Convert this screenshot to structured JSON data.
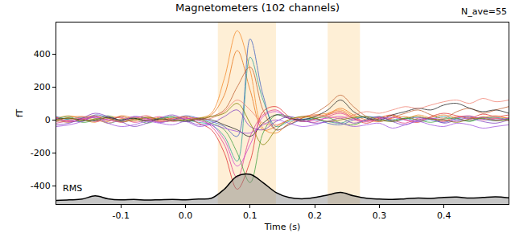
{
  "chart_data": {
    "type": "line",
    "title": "Magnetometers (102 channels)",
    "x_label": "Time (s)",
    "y_label": "fT",
    "annotations": [
      {
        "text": "N_ave=55"
      }
    ],
    "xlim": [
      -0.2,
      0.5
    ],
    "ylim": [
      -510,
      590
    ],
    "xticks": [
      -0.1,
      0.0,
      0.1,
      0.2,
      0.3,
      0.4
    ],
    "yticks": [
      -400,
      -200,
      0,
      200,
      400
    ],
    "grid": false,
    "highlights": [
      [
        0.05,
        0.14
      ],
      [
        0.22,
        0.27
      ]
    ],
    "x": [
      -0.2,
      -0.18,
      -0.16,
      -0.14,
      -0.12,
      -0.1,
      -0.08,
      -0.06,
      -0.04,
      -0.02,
      0.0,
      0.02,
      0.04,
      0.06,
      0.08,
      0.1,
      0.12,
      0.14,
      0.16,
      0.18,
      0.2,
      0.22,
      0.24,
      0.26,
      0.28,
      0.3,
      0.32,
      0.34,
      0.36,
      0.38,
      0.4,
      0.42,
      0.44,
      0.46,
      0.48,
      0.5
    ],
    "series": [
      {
        "color": "#f58a2a",
        "values": [
          10,
          25,
          5,
          -15,
          20,
          10,
          -10,
          15,
          0,
          20,
          -5,
          10,
          40,
          250,
          540,
          300,
          -50,
          -80,
          -20,
          10,
          30,
          40,
          60,
          20,
          -10,
          15,
          25,
          5,
          30,
          10,
          -5,
          20,
          15,
          10,
          25,
          5
        ]
      },
      {
        "color": "#e8751a",
        "values": [
          -5,
          15,
          20,
          0,
          -10,
          25,
          10,
          -5,
          15,
          5,
          10,
          0,
          30,
          150,
          420,
          180,
          -60,
          -40,
          0,
          15,
          20,
          35,
          70,
          30,
          0,
          -10,
          10,
          20,
          0,
          15,
          30,
          10,
          -5,
          20,
          10,
          15
        ]
      },
      {
        "color": "#3b5fc0",
        "values": [
          20,
          0,
          -10,
          30,
          15,
          -5,
          20,
          10,
          -15,
          0,
          25,
          10,
          -10,
          -40,
          -100,
          490,
          150,
          -60,
          -30,
          0,
          10,
          -20,
          -30,
          0,
          20,
          10,
          -10,
          5,
          15,
          0,
          -15,
          10,
          20,
          5,
          -5,
          10
        ]
      },
      {
        "color": "#2aa198",
        "values": [
          -10,
          5,
          15,
          10,
          -20,
          0,
          15,
          -5,
          10,
          20,
          0,
          -15,
          -30,
          -100,
          -250,
          380,
          120,
          -40,
          -10,
          5,
          0,
          -10,
          -20,
          10,
          15,
          -5,
          0,
          10,
          -10,
          5,
          20,
          0,
          -5,
          10,
          15,
          0
        ]
      },
      {
        "color": "#e03030",
        "values": [
          15,
          -10,
          0,
          20,
          10,
          -15,
          5,
          25,
          -5,
          10,
          15,
          -20,
          -60,
          -200,
          -420,
          -250,
          50,
          80,
          20,
          -10,
          5,
          30,
          50,
          10,
          -20,
          10,
          30,
          0,
          -15,
          20,
          40,
          25,
          10,
          35,
          20,
          30
        ]
      },
      {
        "color": "#e0408a",
        "values": [
          -20,
          -5,
          10,
          -10,
          5,
          15,
          -15,
          0,
          20,
          -10,
          5,
          10,
          -40,
          -150,
          -350,
          -100,
          30,
          60,
          10,
          0,
          -15,
          20,
          40,
          10,
          -5,
          15,
          0,
          -20,
          10,
          5,
          -10,
          15,
          25,
          0,
          10,
          -5
        ]
      },
      {
        "color": "#40a040",
        "values": [
          5,
          20,
          -15,
          0,
          25,
          -5,
          10,
          -20,
          5,
          15,
          -10,
          0,
          -20,
          -60,
          -200,
          -380,
          -80,
          30,
          20,
          -10,
          10,
          15,
          -20,
          -30,
          0,
          20,
          -5,
          10,
          0,
          -15,
          5,
          10,
          -10,
          15,
          0,
          5
        ]
      },
      {
        "color": "#c06030",
        "values": [
          0,
          -15,
          10,
          25,
          -5,
          20,
          0,
          10,
          -10,
          -5,
          20,
          5,
          20,
          60,
          200,
          320,
          60,
          -60,
          -30,
          10,
          40,
          90,
          150,
          80,
          20,
          -10,
          15,
          40,
          60,
          30,
          10,
          50,
          70,
          40,
          60,
          80
        ]
      },
      {
        "color": "#8040c0",
        "values": [
          -30,
          -20,
          10,
          40,
          20,
          -10,
          -40,
          -20,
          10,
          30,
          0,
          -30,
          -20,
          20,
          60,
          -40,
          -60,
          -10,
          20,
          0,
          -20,
          -10,
          10,
          -20,
          0,
          20,
          -10,
          -30,
          0,
          10,
          -20,
          0,
          10,
          -10,
          -20,
          0
        ]
      },
      {
        "color": "#202020",
        "values": [
          5,
          10,
          0,
          -5,
          15,
          0,
          10,
          -5,
          5,
          0,
          -10,
          5,
          0,
          -30,
          -60,
          -100,
          -20,
          30,
          10,
          0,
          20,
          60,
          120,
          50,
          10,
          0,
          30,
          50,
          70,
          60,
          90,
          100,
          70,
          50,
          60,
          40
        ]
      },
      {
        "color": "#f08070",
        "values": [
          -10,
          0,
          20,
          10,
          -20,
          5,
          15,
          0,
          -10,
          10,
          20,
          0,
          10,
          50,
          120,
          60,
          -20,
          -30,
          0,
          20,
          30,
          20,
          10,
          30,
          50,
          40,
          60,
          80,
          70,
          90,
          110,
          120,
          100,
          130,
          110,
          120
        ]
      },
      {
        "color": "#a050e0",
        "values": [
          -40,
          -30,
          -10,
          20,
          -20,
          -40,
          -30,
          -10,
          -20,
          -30,
          -10,
          -40,
          -30,
          -50,
          -70,
          -80,
          -30,
          0,
          -20,
          -40,
          -30,
          -10,
          -20,
          -40,
          -30,
          -20,
          -50,
          -30,
          -10,
          -30,
          -40,
          -20,
          -30,
          -50,
          -40,
          -30
        ]
      },
      {
        "color": "#d040d0",
        "values": [
          10,
          -10,
          5,
          15,
          0,
          -10,
          20,
          5,
          -15,
          0,
          10,
          -5,
          -30,
          -120,
          -280,
          -150,
          20,
          50,
          10,
          -10,
          0,
          10,
          20,
          0,
          -10,
          5,
          15,
          0,
          -5,
          10,
          0,
          -10,
          5,
          15,
          0,
          10
        ]
      },
      {
        "color": "#808000",
        "values": [
          0,
          10,
          -5,
          5,
          10,
          -10,
          0,
          15,
          5,
          -5,
          0,
          10,
          20,
          40,
          100,
          -20,
          -150,
          -60,
          0,
          20,
          10,
          -10,
          0,
          15,
          20,
          0,
          -10,
          10,
          20,
          5,
          0,
          -15,
          5,
          10,
          -5,
          0
        ]
      }
    ],
    "rms": {
      "name": "RMS",
      "color": "#000000",
      "values": [
        -488,
        -485,
        -480,
        -460,
        -478,
        -485,
        -482,
        -486,
        -484,
        -482,
        -484,
        -480,
        -475,
        -420,
        -340,
        -330,
        -380,
        -440,
        -470,
        -478,
        -470,
        -455,
        -440,
        -460,
        -475,
        -480,
        -482,
        -478,
        -474,
        -476,
        -470,
        -468,
        -474,
        -470,
        -466,
        -472
      ]
    }
  }
}
